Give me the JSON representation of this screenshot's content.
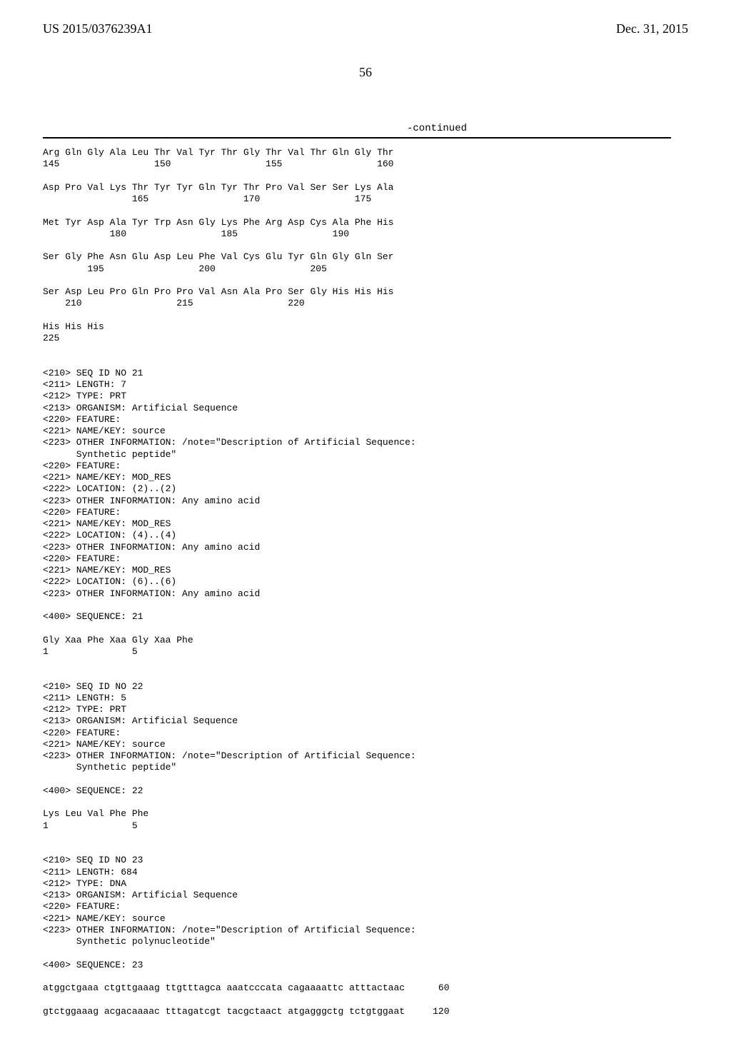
{
  "header": {
    "pub_number": "US 2015/0376239A1",
    "pub_date": "Dec. 31, 2015"
  },
  "page_number": "56",
  "continued_label": "-continued",
  "seq_block": "Arg Gln Gly Ala Leu Thr Val Tyr Thr Gly Thr Val Thr Gln Gly Thr\n145                 150                 155                 160\n\nAsp Pro Val Lys Thr Tyr Tyr Gln Tyr Thr Pro Val Ser Ser Lys Ala\n                165                 170                 175\n\nMet Tyr Asp Ala Tyr Trp Asn Gly Lys Phe Arg Asp Cys Ala Phe His\n            180                 185                 190\n\nSer Gly Phe Asn Glu Asp Leu Phe Val Cys Glu Tyr Gln Gly Gln Ser\n        195                 200                 205\n\nSer Asp Leu Pro Gln Pro Pro Val Asn Ala Pro Ser Gly His His His\n    210                 215                 220\n\nHis His His\n225\n\n\n<210> SEQ ID NO 21\n<211> LENGTH: 7\n<212> TYPE: PRT\n<213> ORGANISM: Artificial Sequence\n<220> FEATURE:\n<221> NAME/KEY: source\n<223> OTHER INFORMATION: /note=\"Description of Artificial Sequence:\n      Synthetic peptide\"\n<220> FEATURE:\n<221> NAME/KEY: MOD_RES\n<222> LOCATION: (2)..(2)\n<223> OTHER INFORMATION: Any amino acid\n<220> FEATURE:\n<221> NAME/KEY: MOD_RES\n<222> LOCATION: (4)..(4)\n<223> OTHER INFORMATION: Any amino acid\n<220> FEATURE:\n<221> NAME/KEY: MOD_RES\n<222> LOCATION: (6)..(6)\n<223> OTHER INFORMATION: Any amino acid\n\n<400> SEQUENCE: 21\n\nGly Xaa Phe Xaa Gly Xaa Phe\n1               5\n\n\n<210> SEQ ID NO 22\n<211> LENGTH: 5\n<212> TYPE: PRT\n<213> ORGANISM: Artificial Sequence\n<220> FEATURE:\n<221> NAME/KEY: source\n<223> OTHER INFORMATION: /note=\"Description of Artificial Sequence:\n      Synthetic peptide\"\n\n<400> SEQUENCE: 22\n\nLys Leu Val Phe Phe\n1               5\n\n\n<210> SEQ ID NO 23\n<211> LENGTH: 684\n<212> TYPE: DNA\n<213> ORGANISM: Artificial Sequence\n<220> FEATURE:\n<221> NAME/KEY: source\n<223> OTHER INFORMATION: /note=\"Description of Artificial Sequence:\n      Synthetic polynucleotide\"\n\n<400> SEQUENCE: 23\n\natggctgaaa ctgttgaaag ttgtttagca aaatcccata cagaaaattc atttactaac      60\n\ngtctggaaag acgacaaaac tttagatcgt tacgctaact atgagggctg tctgtggaat     120"
}
